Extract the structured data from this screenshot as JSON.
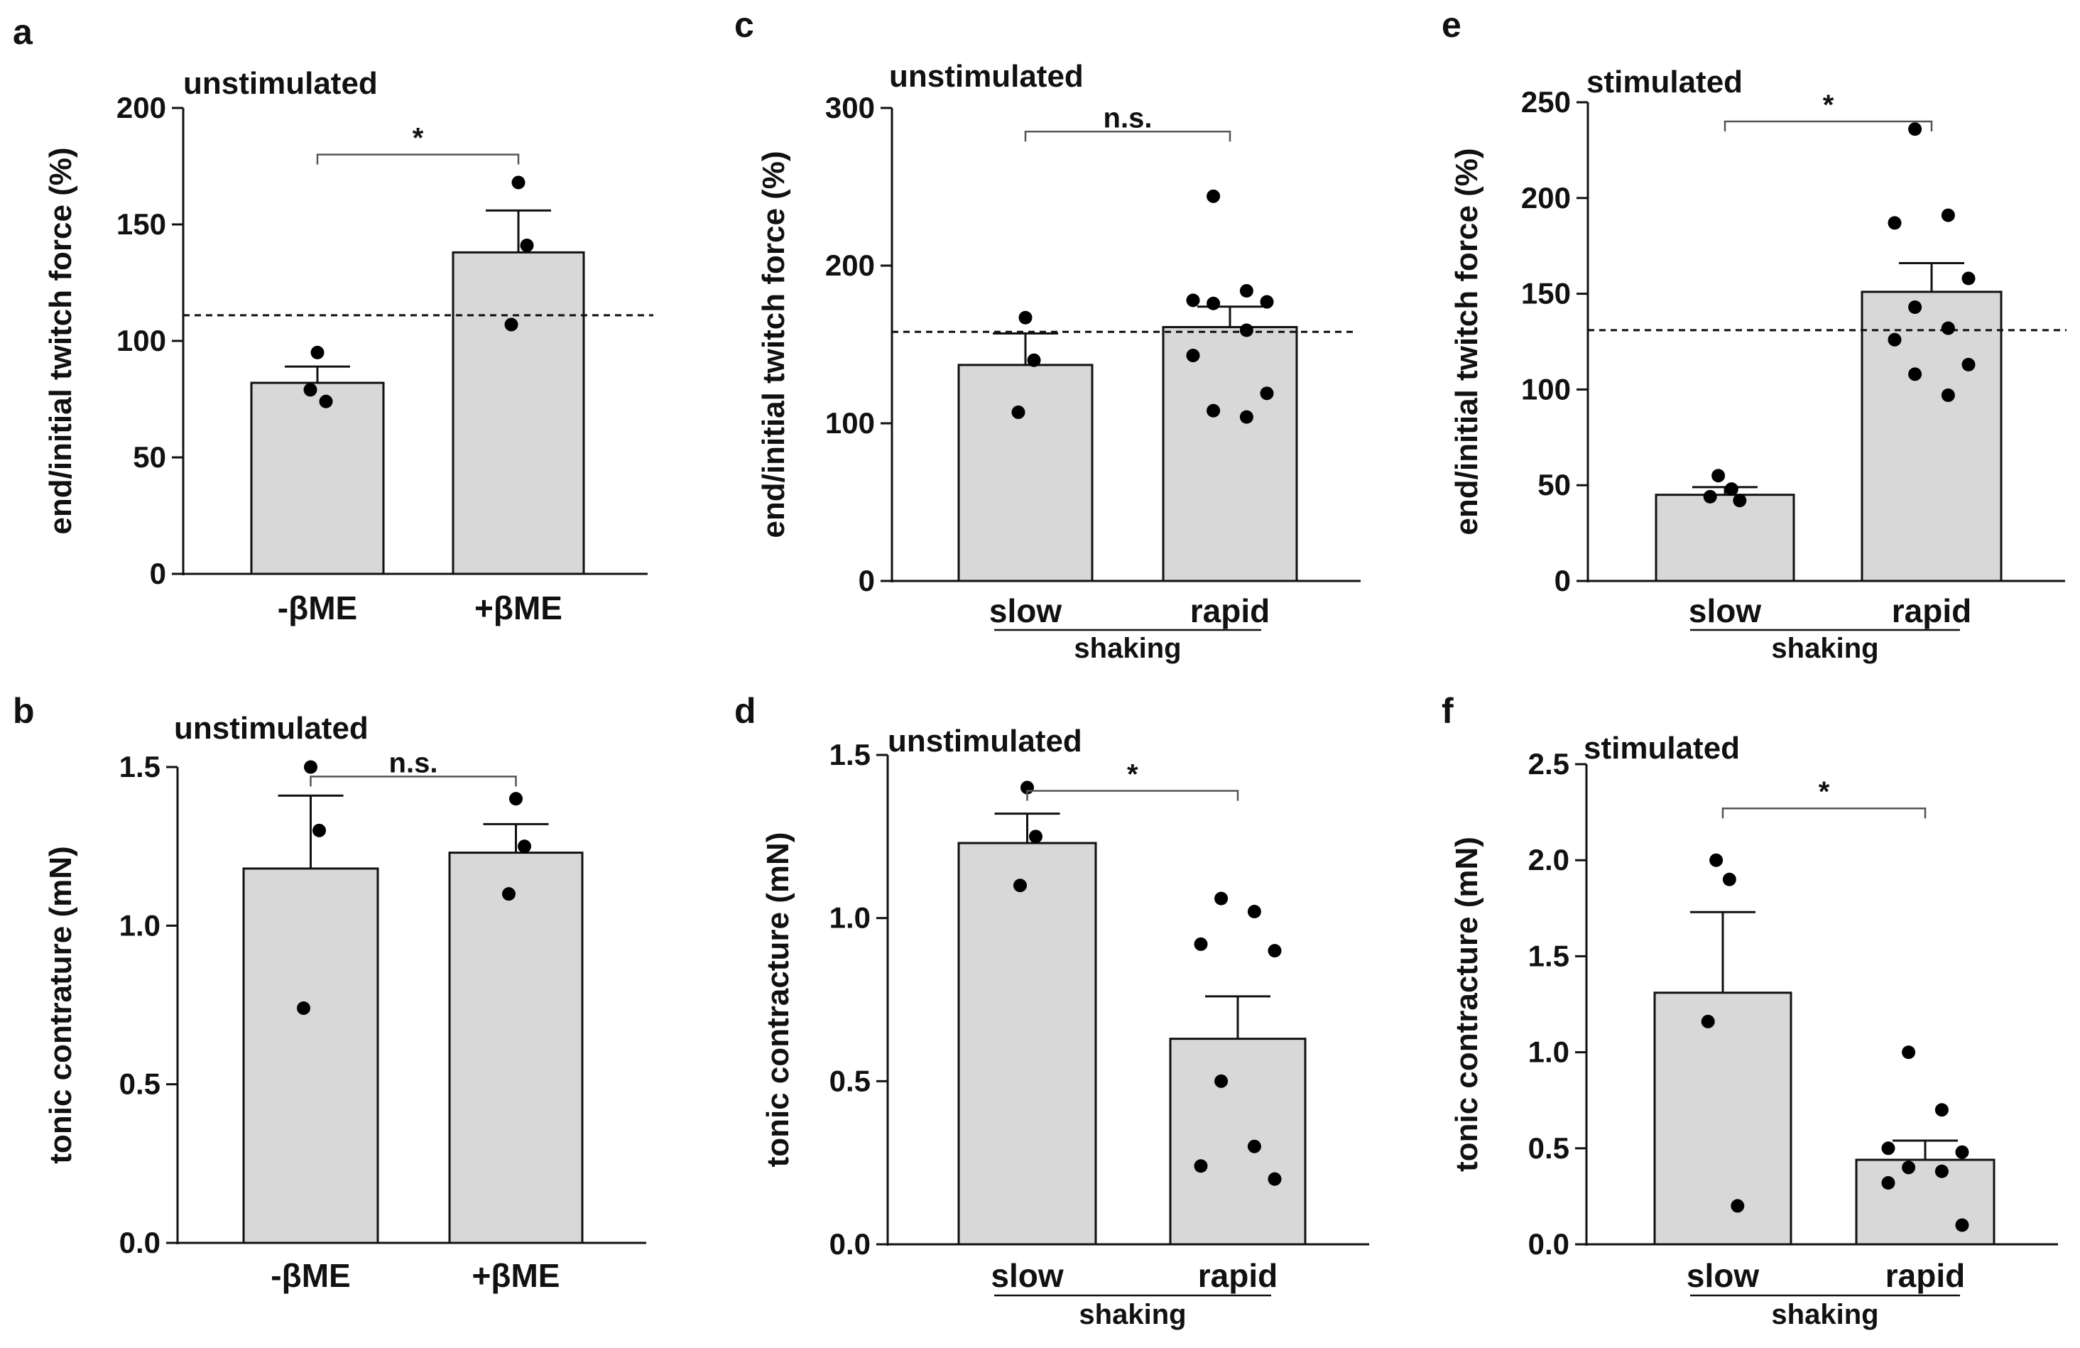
{
  "chart_data": [
    {
      "panel": "a",
      "title": "unstimulated",
      "type": "bar",
      "ylabel": "end/initial twitch force (%)",
      "yticks": [
        0,
        50,
        100,
        150,
        200
      ],
      "ylim": [
        0,
        200
      ],
      "categories": [
        "-βME",
        "+βME"
      ],
      "group_label": "",
      "bars": [
        {
          "mean": 82,
          "sem": 7,
          "points": [
            95,
            74,
            79
          ]
        },
        {
          "mean": 138,
          "sem": 18,
          "points": [
            168,
            141,
            107
          ]
        }
      ],
      "reference_line": 111,
      "significance": "*",
      "bracket_y": 180
    },
    {
      "panel": "b",
      "title": "unstimulated",
      "type": "bar",
      "ylabel": "tonic contrature (mN)",
      "yticks": [
        "0.0",
        "0.5",
        "1.0",
        "1.5"
      ],
      "ylim": [
        0,
        1.5
      ],
      "categories": [
        "-βME",
        "+βME"
      ],
      "group_label": "",
      "bars": [
        {
          "mean": 1.18,
          "sem": 0.23,
          "points": [
            1.5,
            1.3,
            0.74
          ]
        },
        {
          "mean": 1.23,
          "sem": 0.09,
          "points": [
            1.4,
            1.25,
            1.1
          ]
        }
      ],
      "reference_line": null,
      "significance": "n.s.",
      "bracket_y": 1.47
    },
    {
      "panel": "c",
      "title": "unstimulated",
      "type": "bar",
      "ylabel": "end/initial twitch force  (%)",
      "yticks": [
        0,
        100,
        200,
        300
      ],
      "ylim": [
        0,
        300
      ],
      "categories": [
        "slow",
        "rapid"
      ],
      "group_label": "shaking",
      "bars": [
        {
          "mean": 137,
          "sem": 20,
          "points": [
            167,
            140,
            107
          ]
        },
        {
          "mean": 161,
          "sem": 13,
          "points": [
            244,
            184,
            178,
            177,
            176,
            159,
            143,
            119,
            108,
            104
          ]
        }
      ],
      "reference_line": 158,
      "significance": "n.s.",
      "bracket_y": 285
    },
    {
      "panel": "d",
      "title": "unstimulated",
      "type": "bar",
      "ylabel": "tonic contracture (mN)",
      "yticks": [
        "0.0",
        "0.5",
        "1.0",
        "1.5"
      ],
      "ylim": [
        0,
        1.5
      ],
      "categories": [
        "slow",
        "rapid"
      ],
      "group_label": "shaking",
      "bars": [
        {
          "mean": 1.23,
          "sem": 0.09,
          "points": [
            1.4,
            1.25,
            1.1
          ]
        },
        {
          "mean": 0.63,
          "sem": 0.13,
          "points": [
            1.06,
            1.02,
            0.92,
            0.9,
            0.5,
            0.3,
            0.24,
            0.2
          ]
        }
      ],
      "reference_line": null,
      "significance": "*",
      "bracket_y": 1.39
    },
    {
      "panel": "e",
      "title": "stimulated",
      "type": "bar",
      "ylabel": "end/initial twitch force (%)",
      "yticks": [
        0,
        50,
        100,
        150,
        200,
        250
      ],
      "ylim": [
        0,
        250
      ],
      "categories": [
        "slow",
        "rapid"
      ],
      "group_label": "shaking",
      "bars": [
        {
          "mean": 45,
          "sem": 4,
          "points": [
            55,
            48,
            44,
            42
          ]
        },
        {
          "mean": 151,
          "sem": 15,
          "points": [
            236,
            191,
            187,
            158,
            143,
            132,
            126,
            113,
            108,
            97
          ]
        }
      ],
      "reference_line": 131,
      "significance": "*",
      "bracket_y": 240
    },
    {
      "panel": "f",
      "title": "stimulated",
      "type": "bar",
      "ylabel": "tonic contracture (mN)",
      "yticks": [
        "0.0",
        "0.5",
        "1.0",
        "1.5",
        "2.0",
        "2.5"
      ],
      "ylim": [
        0,
        2.5
      ],
      "categories": [
        "slow",
        "rapid"
      ],
      "group_label": "shaking",
      "bars": [
        {
          "mean": 1.31,
          "sem": 0.42,
          "points": [
            2.0,
            1.9,
            1.16,
            0.2
          ]
        },
        {
          "mean": 0.44,
          "sem": 0.1,
          "points": [
            1.0,
            0.7,
            0.5,
            0.48,
            0.4,
            0.38,
            0.32,
            0.1
          ]
        }
      ],
      "reference_line": null,
      "significance": "*",
      "bracket_y": 2.27
    }
  ]
}
